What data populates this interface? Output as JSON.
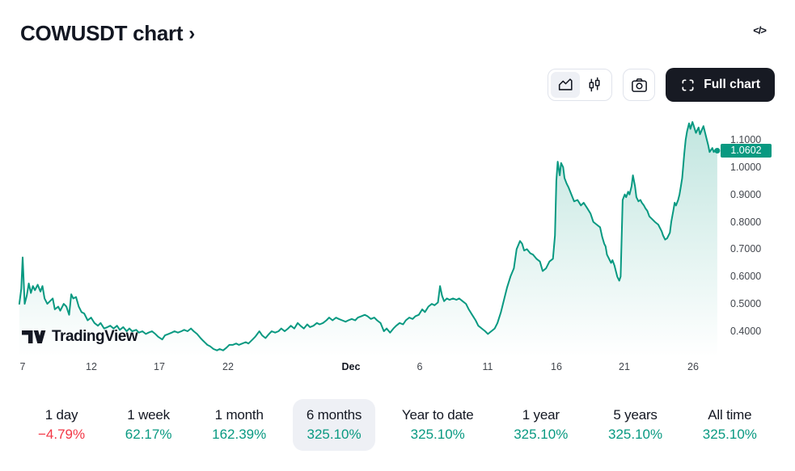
{
  "header": {
    "title": "COWUSDT chart",
    "chevron": "›",
    "embed_icon_label": "</>"
  },
  "toolbar": {
    "chart_style_options": [
      "area",
      "candles"
    ],
    "selected_style": "area",
    "full_chart_label": "Full chart"
  },
  "attribution": {
    "logo_text": "TradingView"
  },
  "colors": {
    "accent_green": "#089981",
    "negative_red": "#f23645",
    "dark_text": "#131722",
    "selected_bg": "#eef0f5",
    "border": "#e0e3eb",
    "badge_bg": "#089981"
  },
  "chart_data": {
    "type": "area",
    "title": "COWUSDT price, 6 months view (Nov 7 - Dec 27)",
    "x_unit": "days since Nov 1",
    "ylim": [
      0.3,
      1.2
    ],
    "grid": false,
    "legend": false,
    "last_price": 1.0602,
    "last_price_label": "1.0602",
    "y_ticks": [
      {
        "value": 1.1,
        "label": "1.1000"
      },
      {
        "value": 1.0,
        "label": "1.0000"
      },
      {
        "value": 0.9,
        "label": "0.9000"
      },
      {
        "value": 0.8,
        "label": "0.8000"
      },
      {
        "value": 0.7,
        "label": "0.7000"
      },
      {
        "value": 0.6,
        "label": "0.6000"
      },
      {
        "value": 0.5,
        "label": "0.5000"
      },
      {
        "value": 0.4,
        "label": "0.4000"
      }
    ],
    "x_ticks": [
      {
        "d": 7,
        "label": "7"
      },
      {
        "d": 12,
        "label": "12"
      },
      {
        "d": 17,
        "label": "17"
      },
      {
        "d": 22,
        "label": "22"
      },
      {
        "d": 31,
        "label": "Dec",
        "bold": true
      },
      {
        "d": 36,
        "label": "6"
      },
      {
        "d": 41,
        "label": "11"
      },
      {
        "d": 46,
        "label": "16"
      },
      {
        "d": 51,
        "label": "21"
      },
      {
        "d": 56,
        "label": "26"
      }
    ],
    "series": [
      {
        "name": "COWUSDT",
        "points": [
          [
            6.76,
            0.5
          ],
          [
            6.9,
            0.555
          ],
          [
            7.0,
            0.67
          ],
          [
            7.15,
            0.5
          ],
          [
            7.3,
            0.53
          ],
          [
            7.45,
            0.575
          ],
          [
            7.6,
            0.54
          ],
          [
            7.75,
            0.565
          ],
          [
            7.9,
            0.55
          ],
          [
            8.1,
            0.57
          ],
          [
            8.3,
            0.545
          ],
          [
            8.45,
            0.565
          ],
          [
            8.6,
            0.52
          ],
          [
            8.8,
            0.5
          ],
          [
            9.0,
            0.51
          ],
          [
            9.2,
            0.52
          ],
          [
            9.35,
            0.48
          ],
          [
            9.6,
            0.49
          ],
          [
            9.75,
            0.475
          ],
          [
            10.0,
            0.5
          ],
          [
            10.2,
            0.49
          ],
          [
            10.4,
            0.46
          ],
          [
            10.55,
            0.535
          ],
          [
            10.7,
            0.52
          ],
          [
            10.9,
            0.525
          ],
          [
            11.1,
            0.49
          ],
          [
            11.3,
            0.47
          ],
          [
            11.5,
            0.465
          ],
          [
            11.75,
            0.44
          ],
          [
            12.0,
            0.45
          ],
          [
            12.25,
            0.43
          ],
          [
            12.5,
            0.42
          ],
          [
            12.7,
            0.43
          ],
          [
            12.95,
            0.41
          ],
          [
            13.2,
            0.415
          ],
          [
            13.4,
            0.42
          ],
          [
            13.65,
            0.41
          ],
          [
            13.9,
            0.42
          ],
          [
            14.1,
            0.405
          ],
          [
            14.35,
            0.415
          ],
          [
            14.6,
            0.4
          ],
          [
            14.8,
            0.41
          ],
          [
            15.0,
            0.4
          ],
          [
            15.3,
            0.405
          ],
          [
            15.5,
            0.395
          ],
          [
            15.75,
            0.4
          ],
          [
            16.0,
            0.39
          ],
          [
            16.2,
            0.395
          ],
          [
            16.45,
            0.4
          ],
          [
            16.7,
            0.39
          ],
          [
            16.9,
            0.38
          ],
          [
            17.2,
            0.37
          ],
          [
            17.4,
            0.385
          ],
          [
            17.65,
            0.39
          ],
          [
            17.9,
            0.395
          ],
          [
            18.1,
            0.4
          ],
          [
            18.35,
            0.395
          ],
          [
            18.6,
            0.4
          ],
          [
            18.8,
            0.405
          ],
          [
            19.05,
            0.4
          ],
          [
            19.3,
            0.41
          ],
          [
            19.5,
            0.4
          ],
          [
            19.75,
            0.39
          ],
          [
            20.0,
            0.375
          ],
          [
            20.2,
            0.365
          ],
          [
            20.5,
            0.35
          ],
          [
            20.7,
            0.345
          ],
          [
            20.95,
            0.335
          ],
          [
            21.2,
            0.33
          ],
          [
            21.4,
            0.335
          ],
          [
            21.65,
            0.33
          ],
          [
            21.9,
            0.34
          ],
          [
            22.1,
            0.35
          ],
          [
            22.35,
            0.35
          ],
          [
            22.6,
            0.355
          ],
          [
            22.8,
            0.35
          ],
          [
            23.05,
            0.355
          ],
          [
            23.3,
            0.36
          ],
          [
            23.5,
            0.355
          ],
          [
            23.8,
            0.37
          ],
          [
            24.0,
            0.38
          ],
          [
            24.3,
            0.4
          ],
          [
            24.5,
            0.385
          ],
          [
            24.75,
            0.375
          ],
          [
            25.0,
            0.39
          ],
          [
            25.2,
            0.4
          ],
          [
            25.45,
            0.395
          ],
          [
            25.7,
            0.4
          ],
          [
            25.9,
            0.41
          ],
          [
            26.15,
            0.4
          ],
          [
            26.4,
            0.41
          ],
          [
            26.6,
            0.42
          ],
          [
            26.85,
            0.41
          ],
          [
            27.1,
            0.43
          ],
          [
            27.3,
            0.42
          ],
          [
            27.55,
            0.41
          ],
          [
            27.8,
            0.425
          ],
          [
            28.0,
            0.415
          ],
          [
            28.25,
            0.42
          ],
          [
            28.5,
            0.43
          ],
          [
            28.7,
            0.425
          ],
          [
            28.95,
            0.43
          ],
          [
            29.2,
            0.44
          ],
          [
            29.4,
            0.45
          ],
          [
            29.65,
            0.44
          ],
          [
            29.9,
            0.45
          ],
          [
            30.1,
            0.445
          ],
          [
            30.35,
            0.44
          ],
          [
            30.6,
            0.435
          ],
          [
            30.8,
            0.44
          ],
          [
            31.05,
            0.445
          ],
          [
            31.3,
            0.44
          ],
          [
            31.5,
            0.45
          ],
          [
            31.75,
            0.455
          ],
          [
            32.0,
            0.46
          ],
          [
            32.2,
            0.455
          ],
          [
            32.45,
            0.445
          ],
          [
            32.7,
            0.45
          ],
          [
            32.9,
            0.44
          ],
          [
            33.15,
            0.43
          ],
          [
            33.4,
            0.4
          ],
          [
            33.6,
            0.41
          ],
          [
            33.85,
            0.395
          ],
          [
            34.1,
            0.41
          ],
          [
            34.3,
            0.42
          ],
          [
            34.55,
            0.43
          ],
          [
            34.8,
            0.425
          ],
          [
            35.0,
            0.44
          ],
          [
            35.25,
            0.45
          ],
          [
            35.5,
            0.445
          ],
          [
            35.7,
            0.455
          ],
          [
            35.95,
            0.46
          ],
          [
            36.2,
            0.48
          ],
          [
            36.4,
            0.47
          ],
          [
            36.65,
            0.49
          ],
          [
            36.9,
            0.5
          ],
          [
            37.1,
            0.495
          ],
          [
            37.35,
            0.505
          ],
          [
            37.5,
            0.565
          ],
          [
            37.65,
            0.53
          ],
          [
            37.8,
            0.51
          ],
          [
            38.0,
            0.52
          ],
          [
            38.2,
            0.515
          ],
          [
            38.45,
            0.52
          ],
          [
            38.7,
            0.515
          ],
          [
            38.9,
            0.52
          ],
          [
            39.15,
            0.51
          ],
          [
            39.4,
            0.5
          ],
          [
            39.6,
            0.48
          ],
          [
            39.85,
            0.46
          ],
          [
            40.1,
            0.44
          ],
          [
            40.3,
            0.42
          ],
          [
            40.55,
            0.41
          ],
          [
            40.8,
            0.4
          ],
          [
            41.0,
            0.39
          ],
          [
            41.25,
            0.4
          ],
          [
            41.5,
            0.41
          ],
          [
            41.7,
            0.43
          ],
          [
            41.95,
            0.47
          ],
          [
            42.2,
            0.52
          ],
          [
            42.4,
            0.56
          ],
          [
            42.65,
            0.6
          ],
          [
            42.9,
            0.63
          ],
          [
            43.1,
            0.7
          ],
          [
            43.35,
            0.73
          ],
          [
            43.5,
            0.72
          ],
          [
            43.65,
            0.695
          ],
          [
            43.85,
            0.7
          ],
          [
            44.1,
            0.685
          ],
          [
            44.3,
            0.68
          ],
          [
            44.55,
            0.665
          ],
          [
            44.8,
            0.655
          ],
          [
            45.0,
            0.62
          ],
          [
            45.25,
            0.63
          ],
          [
            45.5,
            0.655
          ],
          [
            45.75,
            0.665
          ],
          [
            45.9,
            0.75
          ],
          [
            46.0,
            0.95
          ],
          [
            46.1,
            1.02
          ],
          [
            46.25,
            0.97
          ],
          [
            46.35,
            1.015
          ],
          [
            46.5,
            1.0
          ],
          [
            46.6,
            0.96
          ],
          [
            46.75,
            0.94
          ],
          [
            46.9,
            0.925
          ],
          [
            47.1,
            0.9
          ],
          [
            47.3,
            0.875
          ],
          [
            47.55,
            0.88
          ],
          [
            47.8,
            0.86
          ],
          [
            48.0,
            0.87
          ],
          [
            48.25,
            0.85
          ],
          [
            48.5,
            0.83
          ],
          [
            48.7,
            0.8
          ],
          [
            48.95,
            0.79
          ],
          [
            49.2,
            0.78
          ],
          [
            49.35,
            0.745
          ],
          [
            49.5,
            0.72
          ],
          [
            49.6,
            0.71
          ],
          [
            49.7,
            0.68
          ],
          [
            49.8,
            0.67
          ],
          [
            49.9,
            0.66
          ],
          [
            50.0,
            0.65
          ],
          [
            50.1,
            0.66
          ],
          [
            50.25,
            0.64
          ],
          [
            50.35,
            0.62
          ],
          [
            50.45,
            0.6
          ],
          [
            50.6,
            0.585
          ],
          [
            50.7,
            0.6
          ],
          [
            50.85,
            0.88
          ],
          [
            51.0,
            0.9
          ],
          [
            51.1,
            0.89
          ],
          [
            51.25,
            0.91
          ],
          [
            51.35,
            0.9
          ],
          [
            51.5,
            0.93
          ],
          [
            51.6,
            0.97
          ],
          [
            51.75,
            0.93
          ],
          [
            51.85,
            0.89
          ],
          [
            52.0,
            0.875
          ],
          [
            52.15,
            0.88
          ],
          [
            52.25,
            0.87
          ],
          [
            52.4,
            0.86
          ],
          [
            52.5,
            0.85
          ],
          [
            52.65,
            0.84
          ],
          [
            52.8,
            0.82
          ],
          [
            53.0,
            0.81
          ],
          [
            53.2,
            0.8
          ],
          [
            53.45,
            0.79
          ],
          [
            53.7,
            0.765
          ],
          [
            53.8,
            0.75
          ],
          [
            53.95,
            0.735
          ],
          [
            54.1,
            0.74
          ],
          [
            54.2,
            0.75
          ],
          [
            54.3,
            0.76
          ],
          [
            54.4,
            0.8
          ],
          [
            54.55,
            0.84
          ],
          [
            54.65,
            0.87
          ],
          [
            54.75,
            0.86
          ],
          [
            54.9,
            0.88
          ],
          [
            55.0,
            0.9
          ],
          [
            55.1,
            0.93
          ],
          [
            55.2,
            0.96
          ],
          [
            55.35,
            1.05
          ],
          [
            55.45,
            1.1
          ],
          [
            55.55,
            1.13
          ],
          [
            55.7,
            1.16
          ],
          [
            55.8,
            1.14
          ],
          [
            55.95,
            1.165
          ],
          [
            56.05,
            1.15
          ],
          [
            56.2,
            1.125
          ],
          [
            56.4,
            1.145
          ],
          [
            56.5,
            1.12
          ],
          [
            56.75,
            1.15
          ],
          [
            57.0,
            1.1
          ],
          [
            57.1,
            1.08
          ],
          [
            57.2,
            1.055
          ],
          [
            57.4,
            1.07
          ],
          [
            57.5,
            1.055
          ],
          [
            57.65,
            1.065
          ],
          [
            57.76,
            1.0602
          ]
        ]
      }
    ]
  },
  "periods": {
    "items": [
      {
        "label": "1 day",
        "value": "−4.79%",
        "dir": "down",
        "selected": false
      },
      {
        "label": "1 week",
        "value": "62.17%",
        "dir": "up",
        "selected": false
      },
      {
        "label": "1 month",
        "value": "162.39%",
        "dir": "up",
        "selected": false
      },
      {
        "label": "6 months",
        "value": "325.10%",
        "dir": "up",
        "selected": true
      },
      {
        "label": "Year to date",
        "value": "325.10%",
        "dir": "up",
        "selected": false
      },
      {
        "label": "1 year",
        "value": "325.10%",
        "dir": "up",
        "selected": false
      },
      {
        "label": "5 years",
        "value": "325.10%",
        "dir": "up",
        "selected": false
      },
      {
        "label": "All time",
        "value": "325.10%",
        "dir": "up",
        "selected": false
      }
    ]
  }
}
